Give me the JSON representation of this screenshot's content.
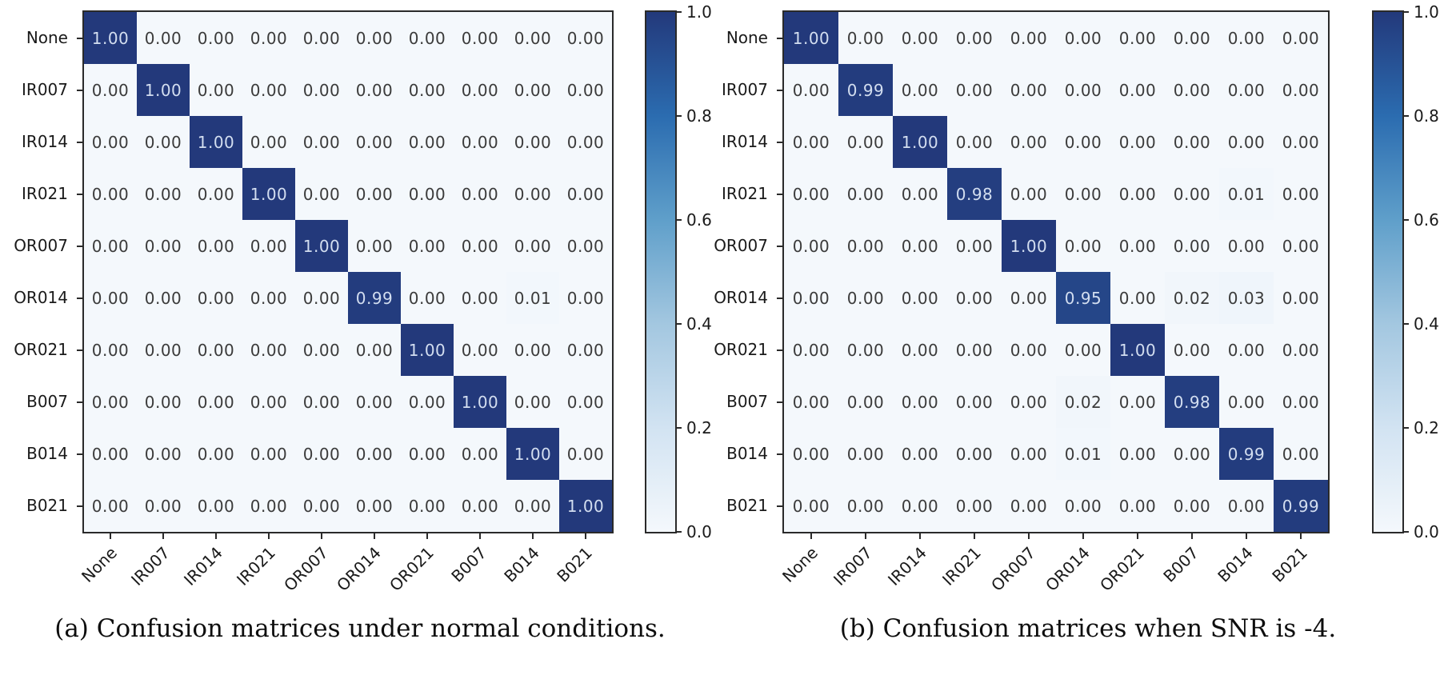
{
  "figure": {
    "background": "#ffffff"
  },
  "colors": {
    "spine": "#2a2a2a",
    "cell_text_light": "#d3def0",
    "cell_text_dark": "#3b3b3b",
    "label_text": "#1a1a1a",
    "cmap_name": "Blues",
    "cmap_stops": [
      [
        0.0,
        "#f4f8fc"
      ],
      [
        0.2,
        "#d2e3f2"
      ],
      [
        0.4,
        "#a3c7e0"
      ],
      [
        0.6,
        "#5f9fca"
      ],
      [
        0.8,
        "#2b6cb0"
      ],
      [
        1.0,
        "#23397b"
      ]
    ]
  },
  "chart_data": [
    {
      "type": "heatmap",
      "caption": "(a) Confusion matrices under normal conditions.",
      "categories": [
        "None",
        "IR007",
        "IR014",
        "IR021",
        "OR007",
        "OR014",
        "OR021",
        "B007",
        "B014",
        "B021"
      ],
      "matrix": [
        [
          1.0,
          0.0,
          0.0,
          0.0,
          0.0,
          0.0,
          0.0,
          0.0,
          0.0,
          0.0
        ],
        [
          0.0,
          1.0,
          0.0,
          0.0,
          0.0,
          0.0,
          0.0,
          0.0,
          0.0,
          0.0
        ],
        [
          0.0,
          0.0,
          1.0,
          0.0,
          0.0,
          0.0,
          0.0,
          0.0,
          0.0,
          0.0
        ],
        [
          0.0,
          0.0,
          0.0,
          1.0,
          0.0,
          0.0,
          0.0,
          0.0,
          0.0,
          0.0
        ],
        [
          0.0,
          0.0,
          0.0,
          0.0,
          1.0,
          0.0,
          0.0,
          0.0,
          0.0,
          0.0
        ],
        [
          0.0,
          0.0,
          0.0,
          0.0,
          0.0,
          0.99,
          0.0,
          0.0,
          0.01,
          0.0
        ],
        [
          0.0,
          0.0,
          0.0,
          0.0,
          0.0,
          0.0,
          1.0,
          0.0,
          0.0,
          0.0
        ],
        [
          0.0,
          0.0,
          0.0,
          0.0,
          0.0,
          0.0,
          0.0,
          1.0,
          0.0,
          0.0
        ],
        [
          0.0,
          0.0,
          0.0,
          0.0,
          0.0,
          0.0,
          0.0,
          0.0,
          1.0,
          0.0
        ],
        [
          0.0,
          0.0,
          0.0,
          0.0,
          0.0,
          0.0,
          0.0,
          0.0,
          0.0,
          1.0
        ]
      ],
      "vmin": 0.0,
      "vmax": 1.0,
      "value_decimals": 2,
      "colorbar_ticks": [
        "1.0",
        "0.8",
        "0.6",
        "0.4",
        "0.2",
        "0.0"
      ],
      "legend_position": "right-colorbar",
      "grid": false
    },
    {
      "type": "heatmap",
      "caption": "(b) Confusion matrices when SNR is -4.",
      "categories": [
        "None",
        "IR007",
        "IR014",
        "IR021",
        "OR007",
        "OR014",
        "OR021",
        "B007",
        "B014",
        "B021"
      ],
      "matrix": [
        [
          1.0,
          0.0,
          0.0,
          0.0,
          0.0,
          0.0,
          0.0,
          0.0,
          0.0,
          0.0
        ],
        [
          0.0,
          0.99,
          0.0,
          0.0,
          0.0,
          0.0,
          0.0,
          0.0,
          0.0,
          0.0
        ],
        [
          0.0,
          0.0,
          1.0,
          0.0,
          0.0,
          0.0,
          0.0,
          0.0,
          0.0,
          0.0
        ],
        [
          0.0,
          0.0,
          0.0,
          0.98,
          0.0,
          0.0,
          0.0,
          0.0,
          0.01,
          0.0
        ],
        [
          0.0,
          0.0,
          0.0,
          0.0,
          1.0,
          0.0,
          0.0,
          0.0,
          0.0,
          0.0
        ],
        [
          0.0,
          0.0,
          0.0,
          0.0,
          0.0,
          0.95,
          0.0,
          0.02,
          0.03,
          0.0
        ],
        [
          0.0,
          0.0,
          0.0,
          0.0,
          0.0,
          0.0,
          1.0,
          0.0,
          0.0,
          0.0
        ],
        [
          0.0,
          0.0,
          0.0,
          0.0,
          0.0,
          0.02,
          0.0,
          0.98,
          0.0,
          0.0
        ],
        [
          0.0,
          0.0,
          0.0,
          0.0,
          0.0,
          0.01,
          0.0,
          0.0,
          0.99,
          0.0
        ],
        [
          0.0,
          0.0,
          0.0,
          0.0,
          0.0,
          0.0,
          0.0,
          0.0,
          0.0,
          0.99
        ]
      ],
      "vmin": 0.0,
      "vmax": 1.0,
      "value_decimals": 2,
      "colorbar_ticks": [
        "1.0",
        "0.8",
        "0.6",
        "0.4",
        "0.2",
        "0.0"
      ],
      "legend_position": "right-colorbar",
      "grid": false
    }
  ]
}
